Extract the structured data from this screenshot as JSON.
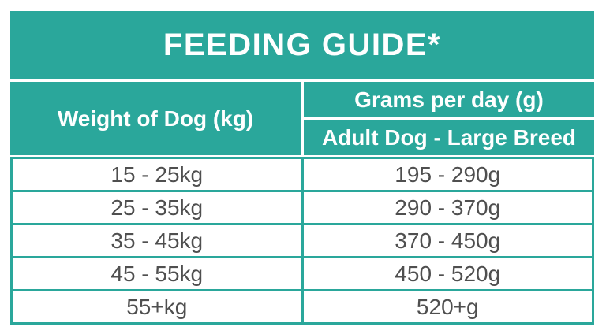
{
  "colors": {
    "teal": "#2aa79b",
    "text_gray": "#4f4f4f",
    "background": "#ffffff"
  },
  "table": {
    "title": "FEEDING GUIDE*",
    "weight_header": "Weight of Dog (kg)",
    "grams_header": "Grams per day (g)",
    "grams_subheader": "Adult Dog - Large Breed",
    "rows": [
      {
        "weight": "15 - 25kg",
        "grams": "195 - 290g"
      },
      {
        "weight": "25 - 35kg",
        "grams": "290 - 370g"
      },
      {
        "weight": "35 - 45kg",
        "grams": "370 - 450g"
      },
      {
        "weight": "45 - 55kg",
        "grams": "450 - 520g"
      },
      {
        "weight": "55+kg",
        "grams": "520+g"
      }
    ]
  },
  "chart_data": {
    "type": "table",
    "title": "FEEDING GUIDE*",
    "columns": [
      "Weight of Dog (kg)",
      "Grams per day (g)"
    ],
    "column_subheaders": [
      "",
      "Adult Dog - Large Breed"
    ],
    "rows": [
      [
        "15 - 25kg",
        "195 - 290g"
      ],
      [
        "25 - 35kg",
        "290 - 370g"
      ],
      [
        "35 - 45kg",
        "370 - 450g"
      ],
      [
        "45 - 55kg",
        "450 - 520g"
      ],
      [
        "55+kg",
        "520+g"
      ]
    ],
    "layout": {
      "grid": "on",
      "header_background": "#2aa79b",
      "header_text_color": "#ffffff",
      "body_text_color": "#4f4f4f"
    }
  }
}
